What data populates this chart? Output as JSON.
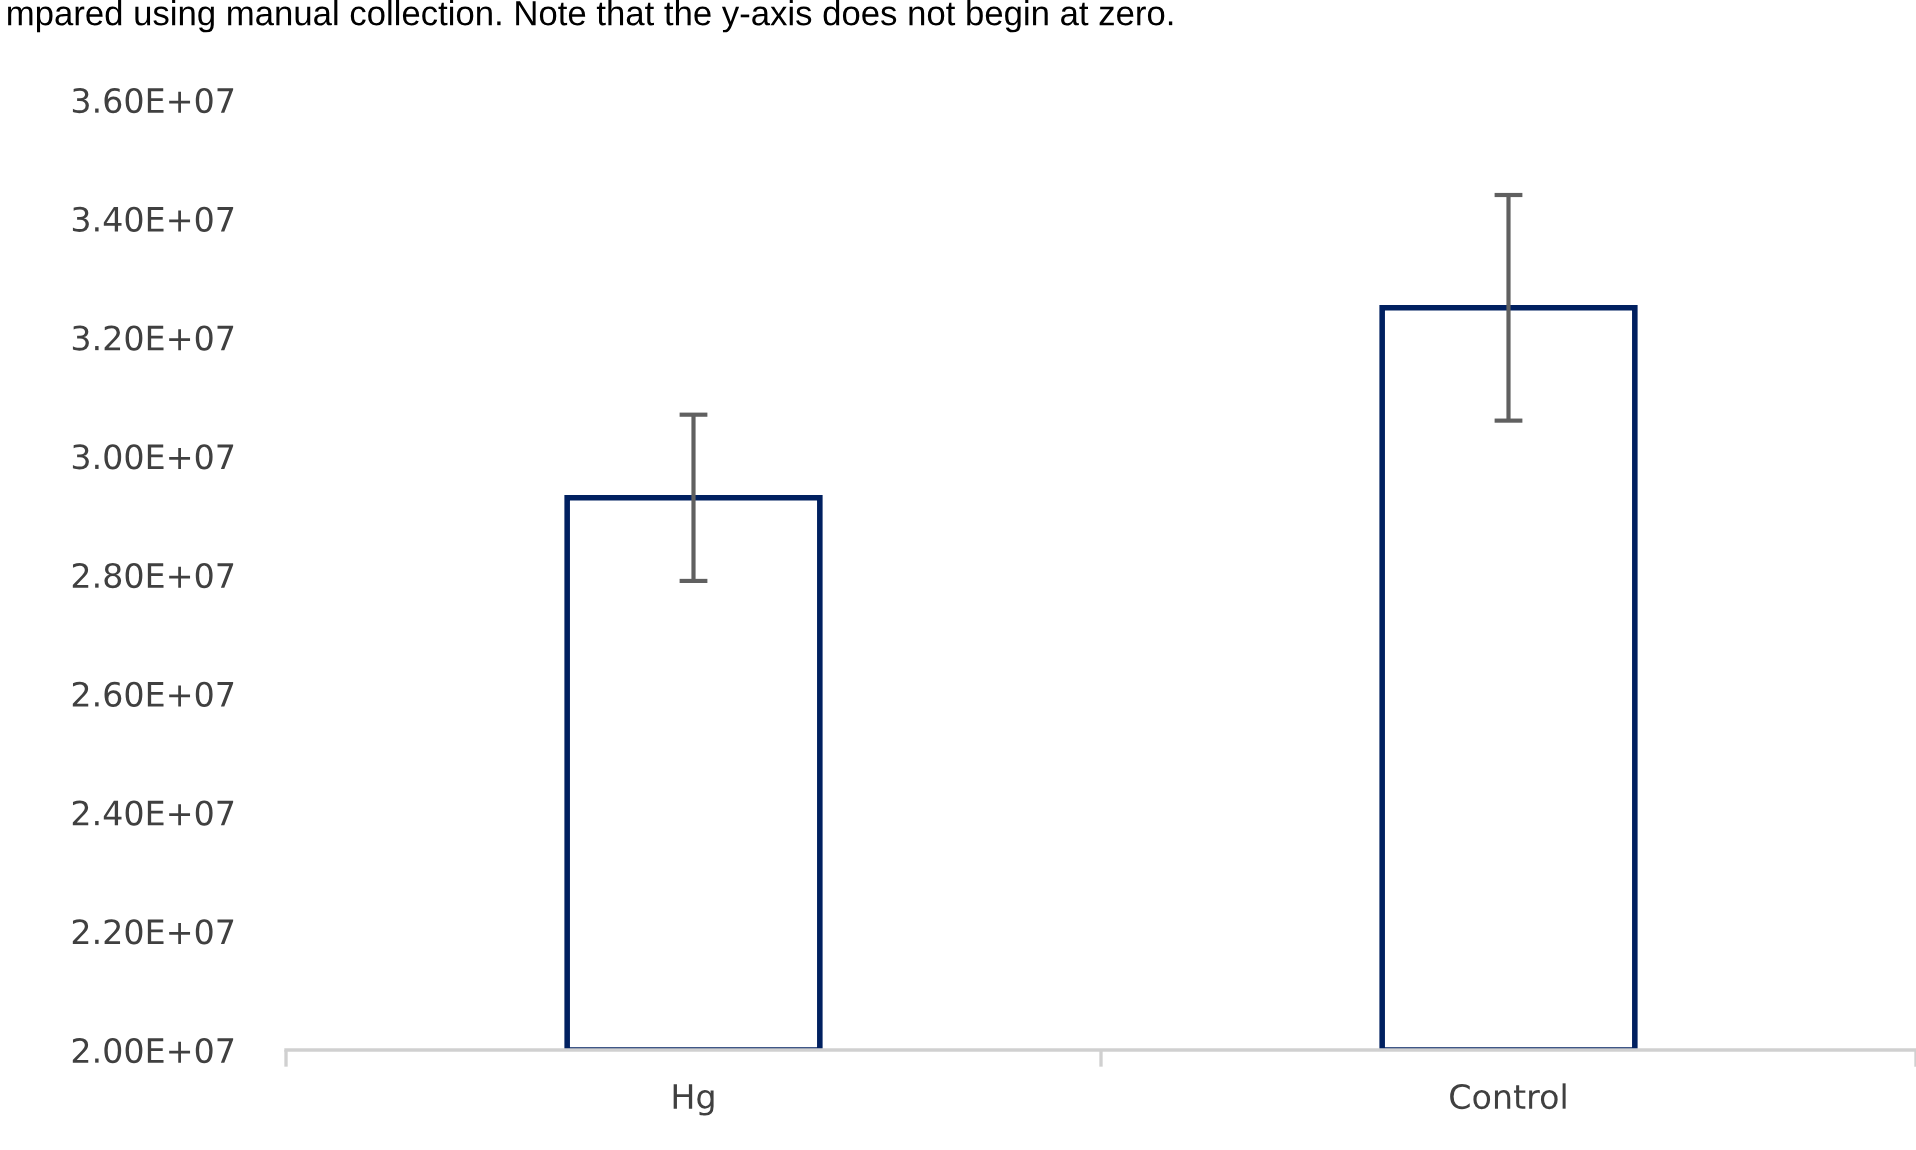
{
  "chart_data": {
    "type": "bar",
    "annotations": [
      "mpared using manual collection. Note that the y-axis does not begin at zero."
    ],
    "categories": [
      "Hg",
      "Control"
    ],
    "values": [
      29300000,
      32500000
    ],
    "errors": [
      1400000,
      1900000
    ],
    "color": "#002060",
    "ylim": [
      20000000,
      36000000
    ],
    "yticks": [
      {
        "value": 20000000,
        "label": "2.00E+07"
      },
      {
        "value": 22000000,
        "label": "2.20E+07"
      },
      {
        "value": 24000000,
        "label": "2.40E+07"
      },
      {
        "value": 26000000,
        "label": "2.60E+07"
      },
      {
        "value": 28000000,
        "label": "2.80E+07"
      },
      {
        "value": 30000000,
        "label": "3.00E+07"
      },
      {
        "value": 32000000,
        "label": "3.20E+07"
      },
      {
        "value": 34000000,
        "label": "3.40E+07"
      },
      {
        "value": 36000000,
        "label": "3.60E+07"
      }
    ],
    "grid": false
  }
}
